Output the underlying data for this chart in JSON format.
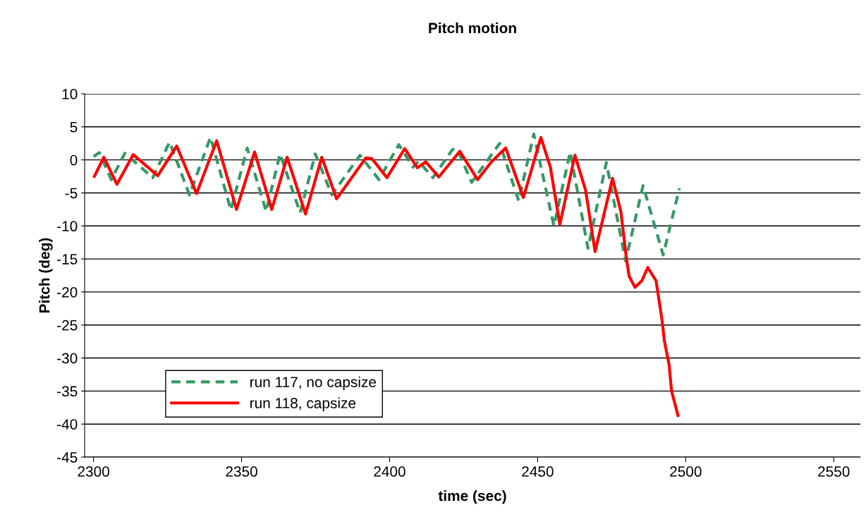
{
  "chart_data": {
    "type": "line",
    "title": "Pitch motion",
    "xlabel": "time (sec)",
    "ylabel": "Pitch (deg)",
    "xlim": [
      2297,
      2559
    ],
    "xticks": [
      2300,
      2350,
      2400,
      2450,
      2500,
      2550
    ],
    "ylim": [
      -45,
      10
    ],
    "yticks": [
      -45,
      -40,
      -35,
      -30,
      -25,
      -20,
      -15,
      -10,
      -5,
      0,
      5,
      10
    ],
    "grid": "y",
    "legend": "bottom left",
    "series": [
      {
        "name": "run 117, no capsize",
        "color": "#339966",
        "line_style": "dashed",
        "x": [
          2300,
          2302,
          2306,
          2310.6,
          2320,
          2325.7,
          2332.4,
          2339.5,
          2346.4,
          2351.9,
          2358.3,
          2363,
          2369.8,
          2374.9,
          2380.5,
          2390,
          2396.4,
          2403.1,
          2407.9,
          2409.8,
          2414.6,
          2421.3,
          2423,
          2427.7,
          2437.2,
          2443.6,
          2448.7,
          2455.5,
          2461,
          2467,
          2473.2,
          2479.7,
          2485.6,
          2492.4,
          2497.9
        ],
        "values": [
          0.5,
          1.1,
          -3.0,
          1.0,
          -2.7,
          2.7,
          -5.3,
          3.4,
          -7.6,
          1.8,
          -7.8,
          0.9,
          -8.0,
          0.9,
          -5.3,
          0.7,
          -3.0,
          2.3,
          -1.1,
          -0.2,
          -2.7,
          1.6,
          1.5,
          -3.4,
          2.5,
          -6.2,
          3.9,
          -10.0,
          1.2,
          -13.4,
          -0.4,
          -15.3,
          -3.9,
          -14.4,
          -4.3
        ]
      },
      {
        "name": "run 118, capsize",
        "color": "#ff0000",
        "line_style": "solid",
        "x": [
          2300.3,
          2303.5,
          2307.9,
          2313.4,
          2321.7,
          2328.1,
          2334.8,
          2341.6,
          2348.3,
          2354.4,
          2360.2,
          2365.4,
          2371.6,
          2377.1,
          2382.1,
          2392,
          2394,
          2399.1,
          2405.1,
          2409.4,
          2412.2,
          2416.6,
          2423.7,
          2429.7,
          2434.4,
          2439.2,
          2445.2,
          2451.1,
          2454.3,
          2457.5,
          2462.6,
          2466.2,
          2469.4,
          2475.3,
          2478.1,
          2480.1,
          2480.9,
          2482.9,
          2485.2,
          2487.2,
          2490,
          2492,
          2492.8,
          2494.4,
          2495.2,
          2497.4
        ],
        "values": [
          -2.5,
          0.4,
          -3.7,
          0.8,
          -2.4,
          2.1,
          -5.1,
          2.9,
          -7.5,
          1.2,
          -7.5,
          0.4,
          -8.2,
          0.4,
          -5.9,
          0.3,
          0.2,
          -2.7,
          1.7,
          -1.2,
          -0.3,
          -2.6,
          1.3,
          -3.0,
          -0.3,
          1.8,
          -5.7,
          3.4,
          -1.1,
          -9.8,
          0.7,
          -4.6,
          -13.9,
          -2.8,
          -7.8,
          -15.3,
          -17.6,
          -19.3,
          -18.3,
          -16.3,
          -18.3,
          -24.2,
          -27.4,
          -31.0,
          -34.9,
          -38.7
        ]
      }
    ]
  }
}
